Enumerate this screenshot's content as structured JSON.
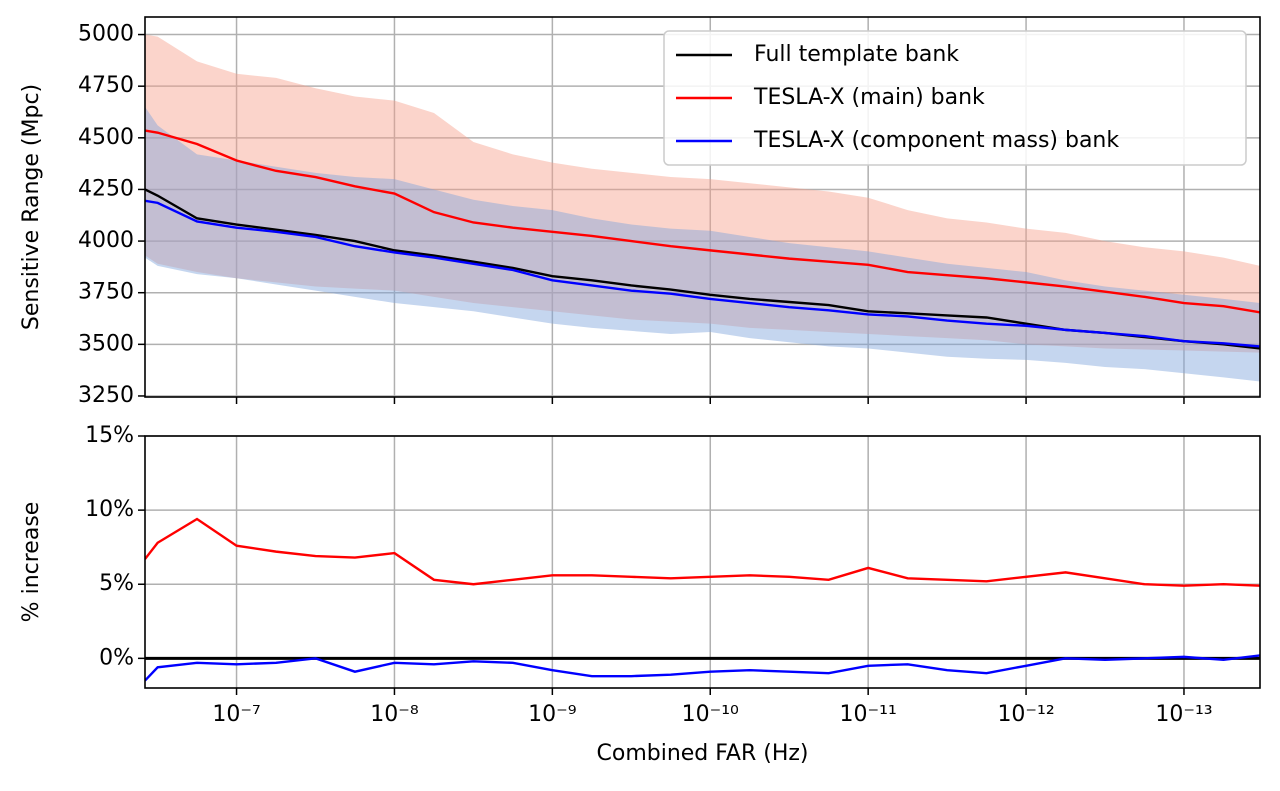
{
  "chart_data": [
    {
      "type": "line",
      "ylabel": "Sensitive Range (Mpc)",
      "xscale": "log",
      "xlim": [
        3.8e-07,
        3.3e-14
      ],
      "ylim": [
        3245,
        5085
      ],
      "yticks": [
        3250,
        3500,
        3750,
        4000,
        4250,
        4500,
        4750,
        5000
      ],
      "xticks": [
        1e-07,
        1e-08,
        1e-09,
        1e-10,
        1e-11,
        1e-12,
        1e-13
      ],
      "show_xtick_labels": false,
      "grid": true,
      "legend": "upper right",
      "x": [
        3.8e-07,
        3.16e-07,
        1.78e-07,
        1e-07,
        5.62e-08,
        3.16e-08,
        1.78e-08,
        1e-08,
        5.62e-09,
        3.16e-09,
        1.78e-09,
        1e-09,
        5.62e-10,
        3.16e-10,
        1.78e-10,
        1e-10,
        5.62e-11,
        3.16e-11,
        1.78e-11,
        1e-11,
        5.62e-12,
        3.16e-12,
        1.78e-12,
        1e-12,
        5.62e-13,
        3.16e-13,
        1.78e-13,
        1e-13,
        5.62e-14,
        3.3e-14
      ],
      "series": [
        {
          "name": "Full template bank",
          "color": "#000000",
          "values": [
            4250,
            4220,
            4110,
            4080,
            4055,
            4030,
            4000,
            3955,
            3930,
            3900,
            3870,
            3830,
            3810,
            3785,
            3765,
            3740,
            3720,
            3705,
            3690,
            3660,
            3650,
            3640,
            3630,
            3600,
            3570,
            3555,
            3535,
            3515,
            3500,
            3480
          ]
        },
        {
          "name": "TESLA-X (main) bank",
          "color": "#ff0000",
          "band_color": "#f7a08c",
          "values": [
            4535,
            4525,
            4470,
            4390,
            4340,
            4310,
            4265,
            4230,
            4140,
            4090,
            4065,
            4045,
            4025,
            4000,
            3975,
            3955,
            3935,
            3915,
            3900,
            3885,
            3850,
            3835,
            3820,
            3800,
            3780,
            3755,
            3730,
            3700,
            3685,
            3655
          ],
          "band_upper": [
            5000,
            4990,
            4870,
            4810,
            4790,
            4740,
            4700,
            4680,
            4620,
            4480,
            4420,
            4380,
            4350,
            4330,
            4310,
            4300,
            4280,
            4260,
            4240,
            4210,
            4150,
            4110,
            4090,
            4060,
            4040,
            4000,
            3970,
            3950,
            3920,
            3880
          ],
          "band_lower": [
            3930,
            3890,
            3850,
            3820,
            3800,
            3780,
            3770,
            3760,
            3730,
            3700,
            3680,
            3660,
            3640,
            3620,
            3610,
            3600,
            3580,
            3570,
            3560,
            3550,
            3540,
            3530,
            3520,
            3500,
            3490,
            3480,
            3475,
            3470,
            3465,
            3460
          ]
        },
        {
          "name": "TESLA-X (component mass) bank",
          "color": "#0000ff",
          "band_color": "#7fa3dc",
          "values": [
            4195,
            4185,
            4095,
            4065,
            4045,
            4020,
            3975,
            3945,
            3920,
            3890,
            3860,
            3810,
            3785,
            3760,
            3745,
            3720,
            3700,
            3680,
            3665,
            3645,
            3635,
            3615,
            3600,
            3590,
            3570,
            3555,
            3540,
            3515,
            3505,
            3490
          ],
          "band_upper": [
            4650,
            4560,
            4420,
            4390,
            4360,
            4330,
            4310,
            4300,
            4250,
            4200,
            4170,
            4150,
            4110,
            4080,
            4060,
            4050,
            4020,
            3990,
            3970,
            3950,
            3920,
            3890,
            3870,
            3850,
            3810,
            3780,
            3760,
            3740,
            3720,
            3700
          ],
          "band_lower": [
            3920,
            3880,
            3840,
            3820,
            3790,
            3760,
            3730,
            3700,
            3680,
            3660,
            3630,
            3600,
            3580,
            3565,
            3550,
            3560,
            3530,
            3510,
            3490,
            3480,
            3460,
            3440,
            3430,
            3425,
            3410,
            3390,
            3380,
            3360,
            3340,
            3320
          ]
        }
      ]
    },
    {
      "type": "line",
      "ylabel": "% increase",
      "xlabel": "Combined FAR (Hz)",
      "xscale": "log",
      "xlim": [
        3.8e-07,
        3.3e-14
      ],
      "ylim": [
        -2,
        15
      ],
      "yticks": [
        {
          "value": 0,
          "label": "0%"
        },
        {
          "value": 5,
          "label": "5%"
        },
        {
          "value": 10,
          "label": "10%"
        },
        {
          "value": 15,
          "label": "15%"
        }
      ],
      "xticks": [
        {
          "value": 1e-07,
          "label": "10⁻⁷"
        },
        {
          "value": 1e-08,
          "label": "10⁻⁸"
        },
        {
          "value": 1e-09,
          "label": "10⁻⁹"
        },
        {
          "value": 1e-10,
          "label": "10⁻¹⁰"
        },
        {
          "value": 1e-11,
          "label": "10⁻¹¹"
        },
        {
          "value": 1e-12,
          "label": "10⁻¹²"
        },
        {
          "value": 1e-13,
          "label": "10⁻¹³"
        }
      ],
      "show_xtick_labels": true,
      "grid": true,
      "hline": 0,
      "hline_color": "#000000",
      "x": [
        3.8e-07,
        3.16e-07,
        1.78e-07,
        1e-07,
        5.62e-08,
        3.16e-08,
        1.78e-08,
        1e-08,
        5.62e-09,
        3.16e-09,
        1.78e-09,
        1e-09,
        5.62e-10,
        3.16e-10,
        1.78e-10,
        1e-10,
        5.62e-11,
        3.16e-11,
        1.78e-11,
        1e-11,
        5.62e-12,
        3.16e-12,
        1.78e-12,
        1e-12,
        5.62e-13,
        3.16e-13,
        1.78e-13,
        1e-13,
        5.62e-14,
        3.3e-14
      ],
      "series": [
        {
          "color": "#ff0000",
          "values": [
            6.7,
            7.8,
            9.4,
            7.6,
            7.2,
            6.9,
            6.8,
            7.1,
            5.3,
            5.0,
            5.3,
            5.6,
            5.6,
            5.5,
            5.4,
            5.5,
            5.6,
            5.5,
            5.3,
            6.1,
            5.4,
            5.3,
            5.2,
            5.5,
            5.8,
            5.4,
            5.0,
            4.9,
            5.0,
            4.9
          ]
        },
        {
          "color": "#0000ff",
          "values": [
            -1.5,
            -0.6,
            -0.3,
            -0.4,
            -0.3,
            0,
            -0.9,
            -0.3,
            -0.4,
            -0.2,
            -0.3,
            -0.8,
            -1.2,
            -1.2,
            -1.1,
            -0.9,
            -0.8,
            -0.9,
            -1.0,
            -0.5,
            -0.4,
            -0.8,
            -1.0,
            -0.5,
            0,
            -0.1,
            0,
            0.1,
            -0.1,
            0.2
          ]
        }
      ]
    }
  ]
}
